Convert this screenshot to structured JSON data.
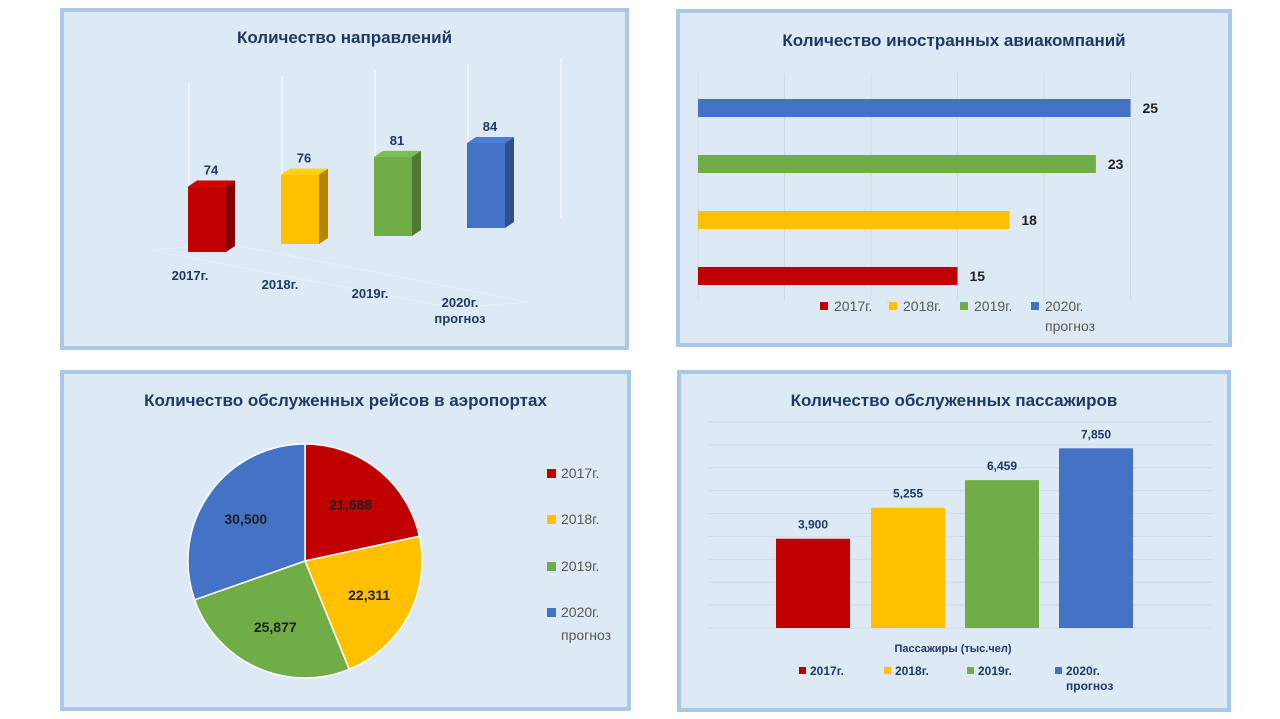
{
  "colors": {
    "y2017": "#c00000",
    "y2018": "#ffc000",
    "y2019": "#70ad47",
    "y2020": "#4472c4"
  },
  "chart_data": [
    {
      "id": "directions",
      "type": "bar",
      "title": "Количество направлений",
      "categories": [
        "2017г.",
        "2018г.",
        "2019г.",
        "2020г. прогноз"
      ],
      "values": [
        74,
        76,
        81,
        84
      ],
      "value_labels": [
        "74",
        "76",
        "81",
        "84"
      ],
      "style": "3d-column",
      "grid": true,
      "legend": "none"
    },
    {
      "id": "airlines",
      "type": "bar",
      "orientation": "horizontal",
      "title": "Количество иностранных авиакомпаний",
      "categories": [
        "2017г.",
        "2018г.",
        "2019г.",
        "2020г. прогноз"
      ],
      "values": [
        15,
        18,
        23,
        25
      ],
      "value_labels": [
        "15",
        "18",
        "23",
        "25"
      ],
      "grid": true,
      "legend": "bottom",
      "legend_entries": [
        "2017г.",
        "2018г.",
        "2019г.",
        "2020г.",
        "прогноз"
      ]
    },
    {
      "id": "flights",
      "type": "pie",
      "title": "Количество обслуженных рейсов в аэропортах",
      "categories": [
        "2017г.",
        "2018г.",
        "2019г.",
        "2020г. прогноз"
      ],
      "values": [
        21688,
        22311,
        25877,
        30500
      ],
      "value_labels": [
        "21,688",
        "22,311",
        "25,877",
        "30,500"
      ],
      "legend": "right",
      "legend_entries": [
        "2017г.",
        "2018г.",
        "2019г.",
        "2020г.",
        "прогноз"
      ]
    },
    {
      "id": "passengers",
      "type": "bar",
      "title": "Количество обслуженных пассажиров",
      "xlabel": "Пассажиры (тыс.чел)",
      "categories": [
        "2017г.",
        "2018г.",
        "2019г.",
        "2020г. прогноз"
      ],
      "values": [
        3900,
        5255,
        6459,
        7850
      ],
      "value_labels": [
        "3,900",
        "5,255",
        "6,459",
        "7,850"
      ],
      "ylim": [
        0,
        9000
      ],
      "grid": true,
      "legend": "bottom",
      "legend_entries": [
        "2017г.",
        "2018г.",
        "2019г.",
        "2020г.",
        "прогноз"
      ]
    }
  ]
}
